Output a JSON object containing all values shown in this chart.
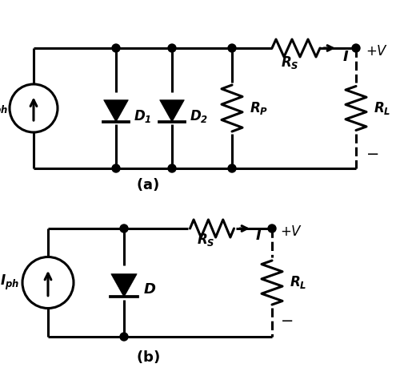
{
  "background": "#ffffff",
  "line_color": "#000000",
  "line_width": 2.2,
  "fig_width": 5.0,
  "fig_height": 4.69,
  "dpi": 100
}
